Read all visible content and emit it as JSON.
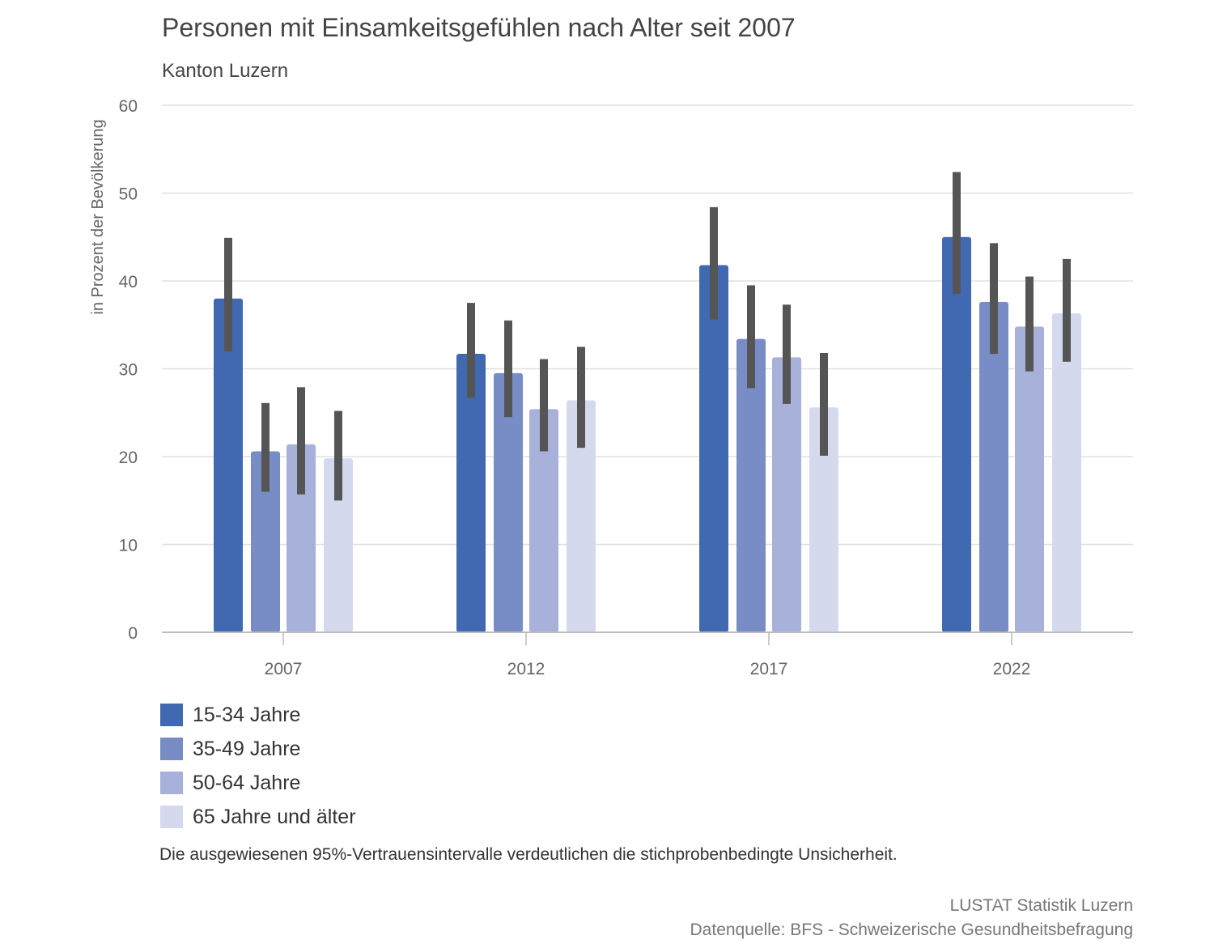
{
  "chart_data": {
    "type": "bar",
    "title": "Personen mit Einsamkeitsgefühlen nach Alter seit 2007",
    "subtitle": "Kanton Luzern",
    "xlabel": "",
    "ylabel": "in Prozent der Bevölkerung",
    "ylim": [
      0,
      60
    ],
    "yticks": [
      0,
      10,
      20,
      30,
      40,
      50,
      60
    ],
    "grid": true,
    "legend_position": "bottom-left",
    "categories": [
      "2007",
      "2012",
      "2017",
      "2022"
    ],
    "series": [
      {
        "name": "15-34 Jahre",
        "color": "#4169b2",
        "values": [
          38.0,
          31.7,
          41.8,
          45.0
        ],
        "ci_low": [
          32.0,
          26.7,
          35.6,
          38.5
        ],
        "ci_high": [
          44.9,
          37.5,
          48.4,
          52.4
        ]
      },
      {
        "name": "35-49 Jahre",
        "color": "#788dc6",
        "values": [
          20.6,
          29.5,
          33.4,
          37.6
        ],
        "ci_low": [
          16.0,
          24.5,
          27.8,
          31.7
        ],
        "ci_high": [
          26.1,
          35.5,
          39.5,
          44.3
        ]
      },
      {
        "name": "50-64 Jahre",
        "color": "#a7b1da",
        "values": [
          21.4,
          25.4,
          31.3,
          34.8
        ],
        "ci_low": [
          15.7,
          20.6,
          26.0,
          29.7
        ],
        "ci_high": [
          27.9,
          31.1,
          37.3,
          40.5
        ]
      },
      {
        "name": "65 Jahre und älter",
        "color": "#d4d9ee",
        "values": [
          19.8,
          26.4,
          25.6,
          36.3
        ],
        "ci_low": [
          15.0,
          21.0,
          20.1,
          30.8
        ],
        "ci_high": [
          25.2,
          32.5,
          31.8,
          42.5
        ]
      }
    ],
    "error_bar_color": "#555555",
    "note": "Die ausgewiesenen 95%-Vertrauensintervalle verdeutlichen die stichprobenbedingte Unsicherheit.",
    "credits": [
      "LUSTAT Statistik Luzern",
      "Datenquelle: BFS - Schweizerische Gesundheitsbefragung"
    ]
  }
}
